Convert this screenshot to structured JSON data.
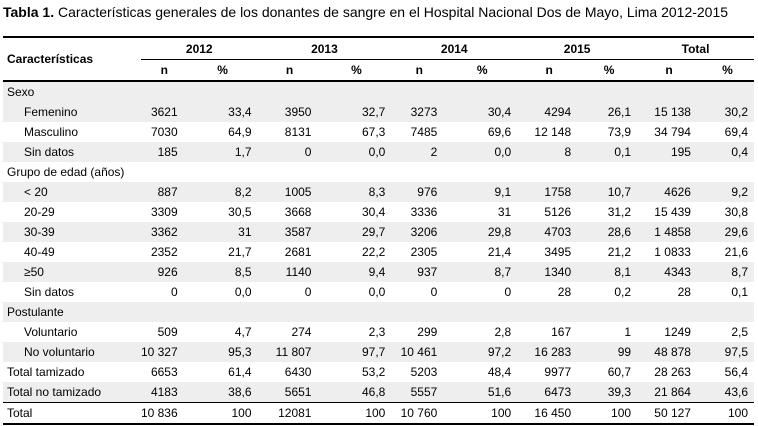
{
  "caption": {
    "label": "Tabla 1.",
    "title": " Características generales de los donantes de sangre en el Hospital Nacional Dos de Mayo, Lima 2012-2015"
  },
  "header": {
    "characteristics": "Características",
    "years": [
      "2012",
      "2013",
      "2014",
      "2015",
      "Total"
    ],
    "n": "n",
    "pct": "%"
  },
  "rows": [
    {
      "label": "Sexo",
      "level": 0,
      "shade": true,
      "section": true,
      "values": []
    },
    {
      "label": "Femenino",
      "level": 1,
      "shade": true,
      "values": [
        "3621",
        "33,4",
        "3950",
        "32,7",
        "3273",
        "30,4",
        "4294",
        "26,1",
        "15 138",
        "30,2"
      ]
    },
    {
      "label": "Masculino",
      "level": 1,
      "shade": false,
      "values": [
        "7030",
        "64,9",
        "8131",
        "67,3",
        "7485",
        "69,6",
        "12 148",
        "73,9",
        "34 794",
        "69,4"
      ]
    },
    {
      "label": "Sin datos",
      "level": 1,
      "shade": true,
      "values": [
        "185",
        "1,7",
        "0",
        "0,0",
        "2",
        "0,0",
        "8",
        "0,1",
        "195",
        "0,4"
      ]
    },
    {
      "label": "Grupo de edad (años)",
      "level": 0,
      "shade": false,
      "section": true,
      "values": []
    },
    {
      "label": "< 20",
      "level": 1,
      "shade": true,
      "values": [
        "887",
        "8,2",
        "1005",
        "8,3",
        "976",
        "9,1",
        "1758",
        "10,7",
        "4626",
        "9,2"
      ]
    },
    {
      "label": "20-29",
      "level": 1,
      "shade": false,
      "values": [
        "3309",
        "30,5",
        "3668",
        "30,4",
        "3336",
        "31",
        "5126",
        "31,2",
        "15 439",
        "30,8"
      ]
    },
    {
      "label": "30-39",
      "level": 1,
      "shade": true,
      "values": [
        "3362",
        "31",
        "3587",
        "29,7",
        "3206",
        "29,8",
        "4703",
        "28,6",
        "1 4858",
        "29,6"
      ]
    },
    {
      "label": "40-49",
      "level": 1,
      "shade": false,
      "values": [
        "2352",
        "21,7",
        "2681",
        "22,2",
        "2305",
        "21,4",
        "3495",
        "21,2",
        "1 0833",
        "21,6"
      ]
    },
    {
      "label": "≥50",
      "level": 1,
      "shade": true,
      "values": [
        "926",
        "8,5",
        "1140",
        "9,4",
        "937",
        "8,7",
        "1340",
        "8,1",
        "4343",
        "8,7"
      ]
    },
    {
      "label": "Sin datos",
      "level": 1,
      "shade": false,
      "values": [
        "0",
        "0,0",
        "0",
        "0,0",
        "0",
        "0",
        "28",
        "0,2",
        "28",
        "0,1"
      ]
    },
    {
      "label": "Postulante",
      "level": 0,
      "shade": true,
      "section": true,
      "values": []
    },
    {
      "label": "Voluntario",
      "level": 1,
      "shade": false,
      "values": [
        "509",
        "4,7",
        "274",
        "2,3",
        "299",
        "2,8",
        "167",
        "1",
        "1249",
        "2,5"
      ]
    },
    {
      "label": "No voluntario",
      "level": 1,
      "shade": true,
      "values": [
        "10 327",
        "95,3",
        "11 807",
        "97,7",
        "10 461",
        "97,2",
        "16 283",
        "99",
        "48 878",
        "97,5"
      ]
    },
    {
      "label": "Total tamizado",
      "level": 0,
      "shade": false,
      "values": [
        "6653",
        "61,4",
        "6430",
        "53,2",
        "5203",
        "48,4",
        "9977",
        "60,7",
        "28 263",
        "56,4"
      ]
    },
    {
      "label": "Total no tamizado",
      "level": 0,
      "shade": true,
      "values": [
        "4183",
        "38,6",
        "5651",
        "46,8",
        "5557",
        "51,6",
        "6473",
        "39,3",
        "21 864",
        "43,6"
      ]
    },
    {
      "label": "Total",
      "level": 0,
      "shade": false,
      "total": true,
      "values": [
        "10 836",
        "100",
        "12081",
        "100",
        "10 760",
        "100",
        "16 450",
        "100",
        "50 127",
        "100"
      ]
    }
  ]
}
